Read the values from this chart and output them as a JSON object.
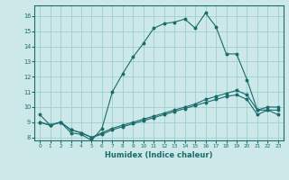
{
  "xlabel": "Humidex (Indice chaleur)",
  "background_color": "#cde8e8",
  "grid_color": "#9ecece",
  "line_color": "#1a6b6b",
  "x_values": [
    0,
    1,
    2,
    3,
    4,
    5,
    6,
    7,
    8,
    9,
    10,
    11,
    12,
    13,
    14,
    15,
    16,
    17,
    18,
    19,
    20,
    21,
    22,
    23
  ],
  "series_main": [
    9.5,
    8.8,
    9.0,
    8.3,
    8.2,
    7.8,
    8.6,
    11.0,
    12.2,
    13.3,
    14.2,
    15.2,
    15.5,
    15.6,
    15.8,
    15.2,
    16.2,
    15.3,
    13.5,
    13.5,
    11.8,
    9.8,
    9.8,
    9.5
  ],
  "series_linear1": [
    9.0,
    8.8,
    9.0,
    8.5,
    8.3,
    8.0,
    8.2,
    8.5,
    8.7,
    8.9,
    9.1,
    9.3,
    9.5,
    9.7,
    9.9,
    10.1,
    10.3,
    10.5,
    10.7,
    10.8,
    10.5,
    9.5,
    9.8,
    9.8
  ],
  "series_linear2": [
    9.0,
    8.8,
    9.0,
    8.5,
    8.3,
    8.0,
    8.3,
    8.6,
    8.8,
    9.0,
    9.2,
    9.4,
    9.6,
    9.8,
    10.0,
    10.2,
    10.5,
    10.7,
    10.9,
    11.1,
    10.8,
    9.8,
    10.0,
    10.0
  ],
  "ylim": [
    7.8,
    16.7
  ],
  "xlim": [
    -0.5,
    23.5
  ],
  "yticks": [
    8,
    9,
    10,
    11,
    12,
    13,
    14,
    15,
    16
  ],
  "xticks": [
    0,
    1,
    2,
    3,
    4,
    5,
    6,
    7,
    8,
    9,
    10,
    11,
    12,
    13,
    14,
    15,
    16,
    17,
    18,
    19,
    20,
    21,
    22,
    23
  ]
}
